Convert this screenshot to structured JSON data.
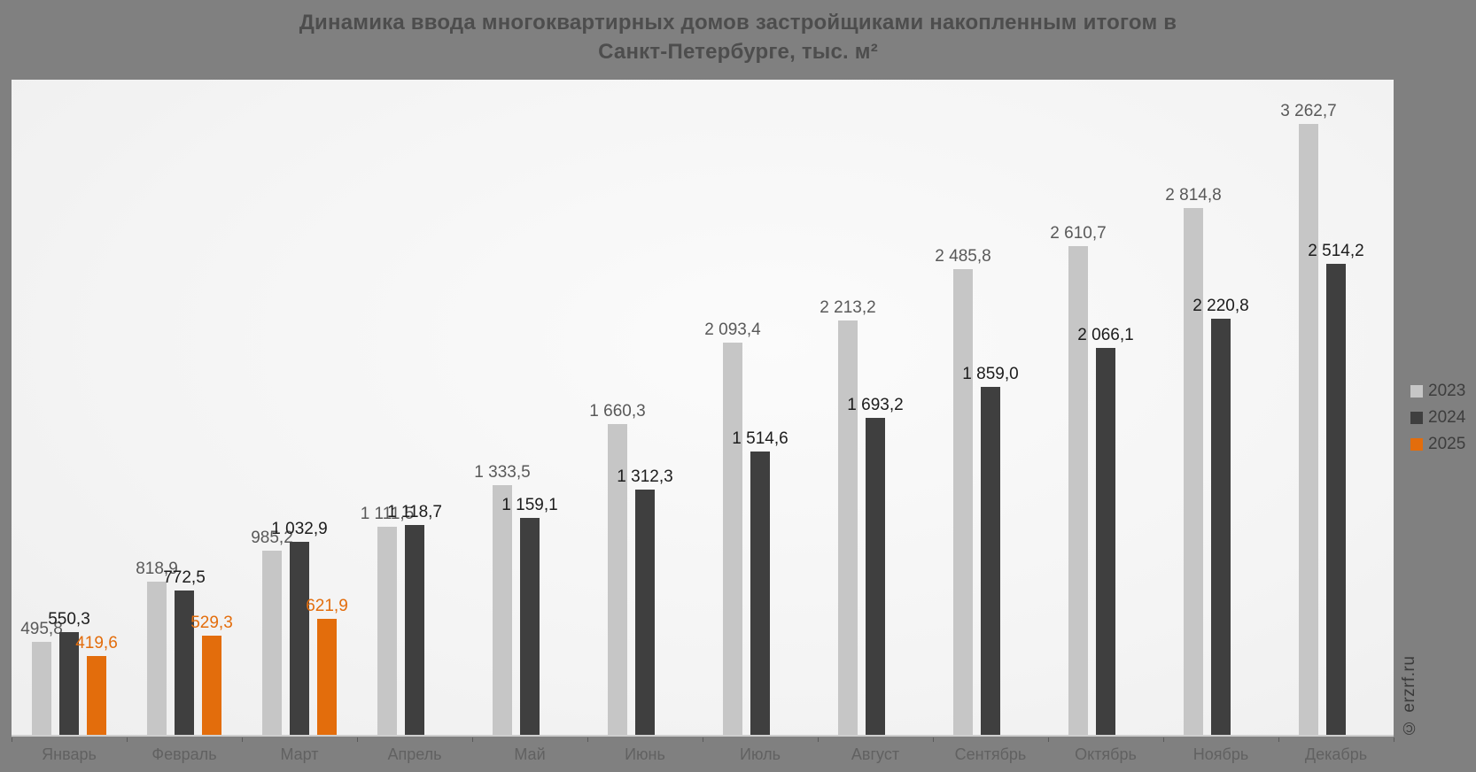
{
  "watermark": "© erzrf.ru",
  "chart_data": {
    "type": "bar",
    "title": "Динамика ввода многоквартирных домов застройщиками накопленным итогом в Санкт-Петербурге, тыс. м²",
    "title_lines": [
      "Динамика ввода многоквартирных домов застройщиками накопленным итогом в",
      "Санкт-Петербурге, тыс. м²"
    ],
    "xlabel": "",
    "ylabel": "тыс. м²",
    "ylim": [
      0,
      3500
    ],
    "grid": false,
    "legend_position": "right",
    "categories": [
      "Январь",
      "Февраль",
      "Март",
      "Апрель",
      "Май",
      "Июнь",
      "Июль",
      "Август",
      "Сентябрь",
      "Октябрь",
      "Ноябрь",
      "Декабрь"
    ],
    "series": [
      {
        "name": "2023",
        "color": "#c6c6c6",
        "label_color": "#595959",
        "values": [
          495.8,
          818.9,
          985.2,
          1111.5,
          1333.5,
          1660.3,
          2093.4,
          2213.2,
          2485.8,
          2610.7,
          2814.8,
          3262.7
        ],
        "labels": [
          "495,8",
          "818,9",
          "985,2",
          "1 111,5",
          "1 333,5",
          "1 660,3",
          "2 093,4",
          "2 213,2",
          "2 485,8",
          "2 610,7",
          "2 814,8",
          "3 262,7"
        ]
      },
      {
        "name": "2024",
        "color": "#3f3f3f",
        "label_color": "#1c1c1c",
        "values": [
          550.3,
          772.5,
          1032.9,
          1118.7,
          1159.1,
          1312.3,
          1514.6,
          1693.2,
          1859.0,
          2066.1,
          2220.8,
          2514.2
        ],
        "labels": [
          "550,3",
          "772,5",
          "1 032,9",
          "1 118,7",
          "1 159,1",
          "1 312,3",
          "1 514,6",
          "1 693,2",
          "1 859,0",
          "2 066,1",
          "2 220,8",
          "2 514,2"
        ]
      },
      {
        "name": "2025",
        "color": "#e36d0c",
        "label_color": "#e36d0c",
        "values": [
          419.6,
          529.3,
          621.9,
          null,
          null,
          null,
          null,
          null,
          null,
          null,
          null,
          null
        ],
        "labels": [
          "419,6",
          "529,3",
          "621,9",
          null,
          null,
          null,
          null,
          null,
          null,
          null,
          null,
          null
        ]
      }
    ]
  }
}
